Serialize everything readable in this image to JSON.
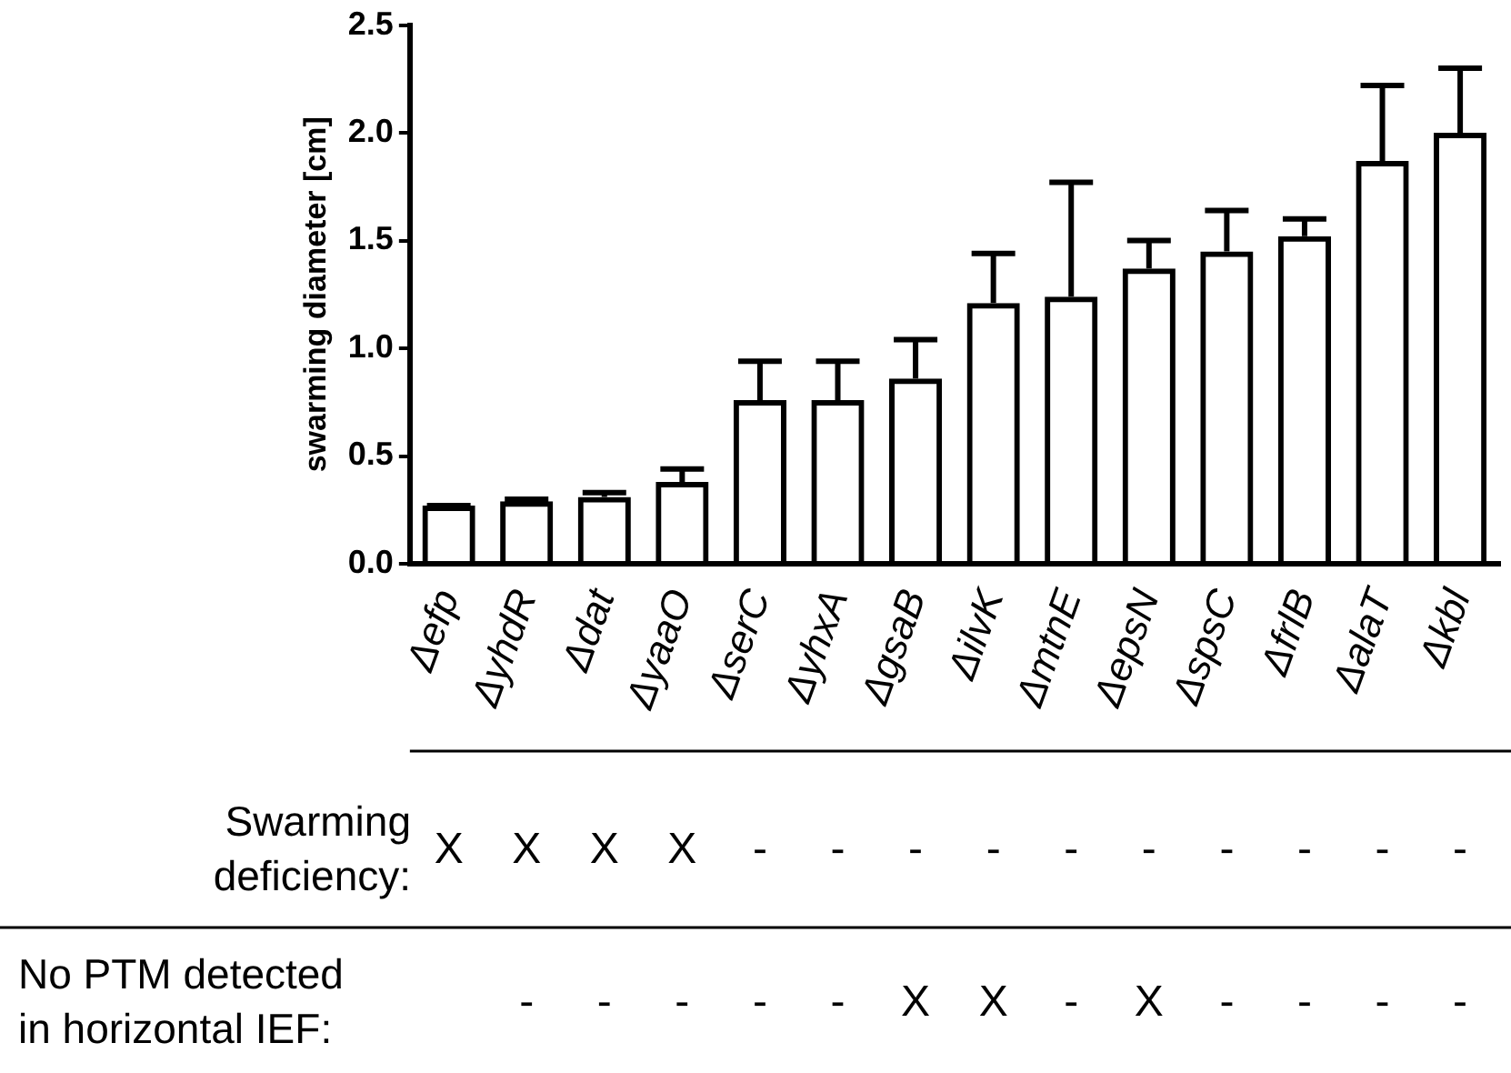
{
  "chart_data": {
    "type": "bar",
    "ylabel": "swarming diameter [cm]",
    "categories": [
      "Δefp",
      "ΔyhdR",
      "Δdat",
      "ΔyaaO",
      "ΔserC",
      "ΔyhxA",
      "ΔgsaB",
      "ΔilvK",
      "ΔmtnE",
      "ΔepsN",
      "ΔspsC",
      "ΔfrlB",
      "ΔalaT",
      "Δkbl"
    ],
    "values": [
      0.27,
      0.29,
      0.31,
      0.38,
      0.76,
      0.76,
      0.86,
      1.21,
      1.24,
      1.37,
      1.45,
      1.52,
      1.87,
      2.0
    ],
    "errors": [
      [
        0.27,
        0.27
      ],
      [
        0.29,
        0.3
      ],
      [
        0.31,
        0.33
      ],
      [
        0.38,
        0.44
      ],
      [
        0.76,
        0.94
      ],
      [
        0.76,
        0.94
      ],
      [
        0.86,
        1.04
      ],
      [
        1.21,
        1.44
      ],
      [
        1.24,
        1.77
      ],
      [
        1.37,
        1.5
      ],
      [
        1.45,
        1.64
      ],
      [
        1.52,
        1.6
      ],
      [
        1.87,
        2.22
      ],
      [
        2.0,
        2.3
      ]
    ],
    "color": "#000000",
    "ylim": [
      0,
      2.5
    ],
    "yticks": [
      {
        "value": 0,
        "label": "0.0"
      },
      {
        "value": 0.5,
        "label": "0.5"
      },
      {
        "value": 1,
        "label": "1.0"
      },
      {
        "value": 1.5,
        "label": "1.5"
      },
      {
        "value": 2,
        "label": "2.0"
      },
      {
        "value": 2.5,
        "label": "2.5"
      }
    ],
    "grid": false,
    "legend": false,
    "annotations": [
      "Swarming deficiency:",
      "X",
      "X",
      "X",
      "X",
      "-",
      "-",
      "-",
      "-",
      "-",
      "-",
      "-",
      "-",
      "-",
      "-",
      "No PTM detected in horizontal IEF:",
      "-",
      "-",
      "-",
      "-",
      "-",
      "X",
      "X",
      "-",
      "X",
      "-",
      "-",
      "-",
      "-"
    ]
  }
}
